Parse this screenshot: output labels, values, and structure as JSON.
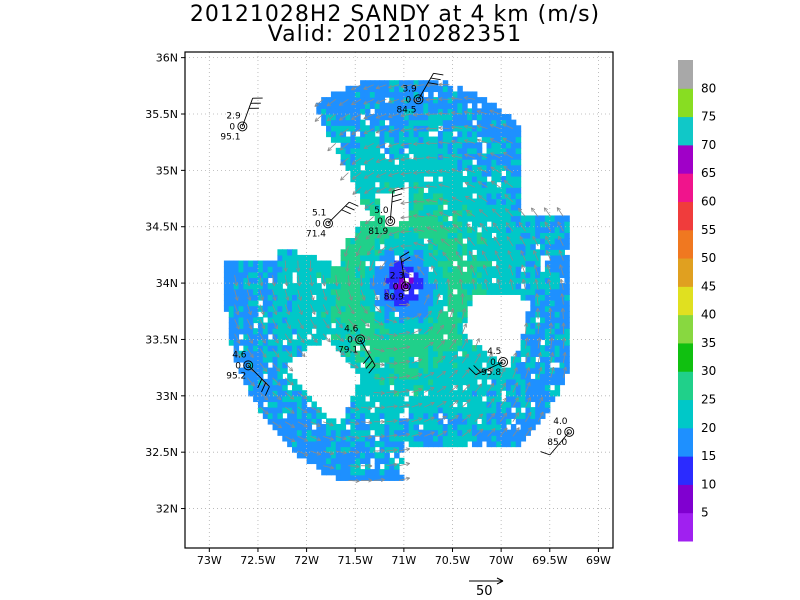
{
  "title_line1": "20121028H2 SANDY at 4 km (m/s)",
  "title_line2": "Valid: 201210282351",
  "reference_vector": {
    "label": "50",
    "value": 50
  },
  "colors": {
    "frame": "#000000",
    "grid": "#b0b0b0",
    "barb": "#000000",
    "vector": "#8a8a8a"
  },
  "chart_data": {
    "type": "heatmap",
    "title": "20121028H2 SANDY at 4 km (m/s)",
    "subtitle": "Valid: 201210282351",
    "x_ticks": [
      "73W",
      "72.5W",
      "72W",
      "71.5W",
      "71W",
      "70.5W",
      "70W",
      "69.5W",
      "69W"
    ],
    "x_tick_values": [
      -73,
      -72.5,
      -72,
      -71.5,
      -71,
      -70.5,
      -70,
      -69.5,
      -69
    ],
    "y_ticks": [
      "32N",
      "32.5N",
      "33N",
      "33.5N",
      "34N",
      "34.5N",
      "35N",
      "35.5N",
      "36N"
    ],
    "y_tick_values": [
      32,
      32.5,
      33,
      33.5,
      34,
      34.5,
      35,
      35.5,
      36
    ],
    "xlim": [
      -73.25,
      -68.85
    ],
    "ylim": [
      31.65,
      36.05
    ],
    "grid": true,
    "colorbar": {
      "labels": [
        "5",
        "10",
        "15",
        "20",
        "25",
        "30",
        "35",
        "40",
        "45",
        "50",
        "55",
        "60",
        "65",
        "70",
        "75",
        "80"
      ],
      "colors": [
        "#a020f0",
        "#8000d0",
        "#2b2bff",
        "#1e90ff",
        "#00c8c8",
        "#20d08a",
        "#10c010",
        "#88d840",
        "#e0e020",
        "#e0a020",
        "#f07820",
        "#f03c3c",
        "#f0148c",
        "#a000c8",
        "#10c8c8",
        "#88dd22",
        "#a8a8a8"
      ]
    },
    "center": {
      "lon": -71.0,
      "lat": 33.98
    },
    "rmw_lon_deg": 0.55,
    "stations": [
      {
        "lon": -70.85,
        "lat": 35.63,
        "speed": "3.9",
        "zero": "0",
        "pres": "84.5"
      },
      {
        "lon": -72.66,
        "lat": 35.39,
        "speed": "2.9",
        "zero": "0",
        "pres": "95.1"
      },
      {
        "lon": -71.78,
        "lat": 34.53,
        "speed": "5.1",
        "zero": "0",
        "pres": "71.4"
      },
      {
        "lon": -71.14,
        "lat": 34.55,
        "speed": "5.0",
        "zero": "0",
        "pres": "81.9"
      },
      {
        "lon": -70.98,
        "lat": 33.97,
        "speed": "2.3",
        "zero": "0",
        "pres": "80.9"
      },
      {
        "lon": -71.45,
        "lat": 33.5,
        "speed": "4.6",
        "zero": "0",
        "pres": "79.1"
      },
      {
        "lon": -72.6,
        "lat": 33.27,
        "speed": "4.6",
        "zero": "0",
        "pres": "95.2"
      },
      {
        "lon": -69.98,
        "lat": 33.3,
        "speed": "4.5",
        "zero": "0",
        "pres": "95.8"
      },
      {
        "lon": -69.3,
        "lat": 32.68,
        "speed": "4.0",
        "zero": "0",
        "pres": "85.0"
      }
    ],
    "barbs": [
      {
        "lon": -70.85,
        "lat": 35.63,
        "dir": 30,
        "flags": 3
      },
      {
        "lon": -72.66,
        "lat": 35.39,
        "dir": 20,
        "flags": 3
      },
      {
        "lon": -71.78,
        "lat": 34.53,
        "dir": 45,
        "flags": 3
      },
      {
        "lon": -71.14,
        "lat": 34.55,
        "dir": 5,
        "flags": 3
      },
      {
        "lon": -70.98,
        "lat": 33.97,
        "dir": 350,
        "flags": 2
      },
      {
        "lon": -71.45,
        "lat": 33.5,
        "dir": 150,
        "flags": 3
      },
      {
        "lon": -72.6,
        "lat": 33.27,
        "dir": 135,
        "flags": 3
      },
      {
        "lon": -69.98,
        "lat": 33.3,
        "dir": 245,
        "flags": 2
      },
      {
        "lon": -69.3,
        "lat": 32.68,
        "dir": 220,
        "flags": 1
      }
    ]
  }
}
